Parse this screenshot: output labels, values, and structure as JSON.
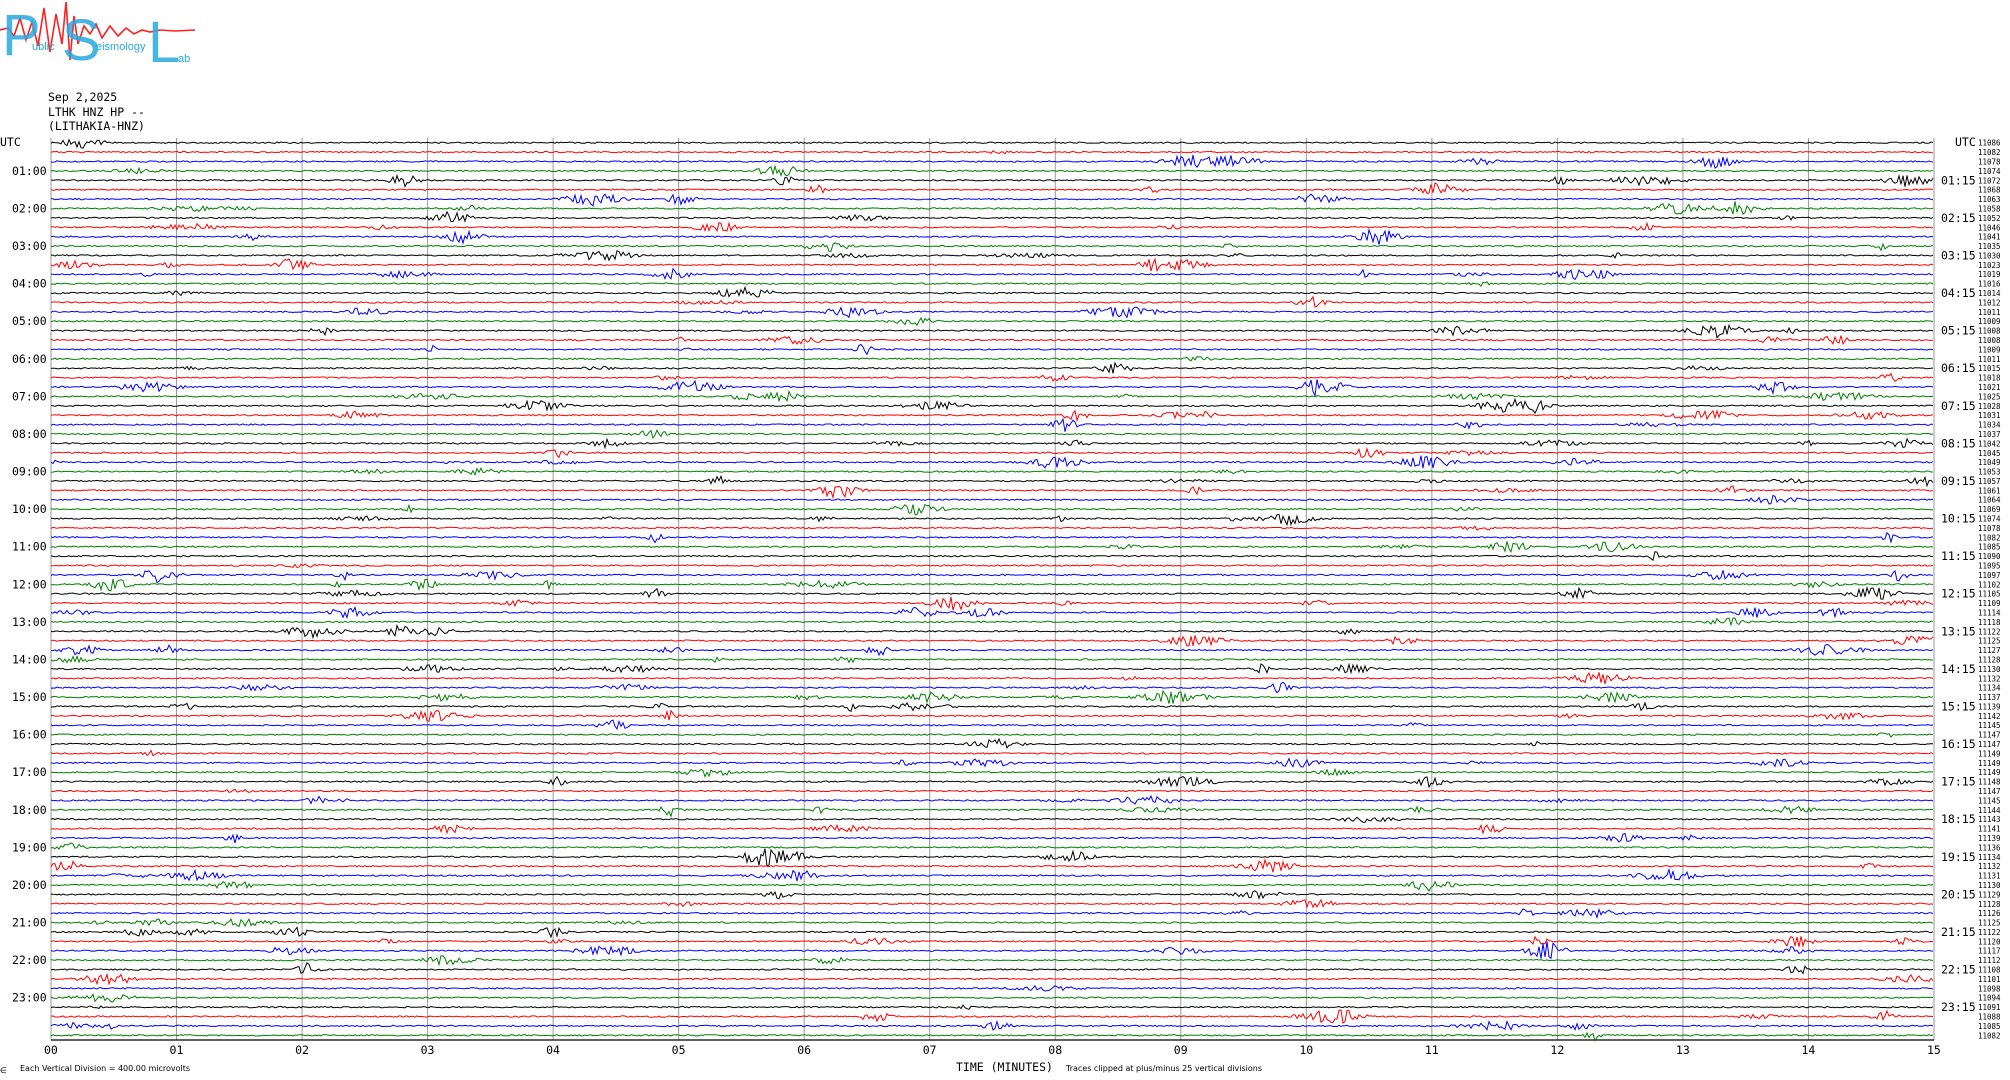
{
  "logo": {
    "letters": [
      "P",
      "S",
      "L"
    ],
    "words": [
      "ublic",
      "eismology",
      "ab"
    ],
    "color": "#2aa9e0",
    "wave_color": "#ff2020"
  },
  "header": {
    "date": "Sep 2,2025",
    "station": "LTHK HNZ HP --",
    "location": "(LITHAKIA-HNZ)"
  },
  "chart_data": {
    "type": "line",
    "title": "",
    "xlabel": "TIME (MINUTES)",
    "x_ticks": [
      "00",
      "01",
      "02",
      "03",
      "04",
      "05",
      "06",
      "07",
      "08",
      "09",
      "10",
      "11",
      "12",
      "13",
      "14",
      "15"
    ],
    "xlim": [
      0,
      15
    ],
    "left_axis_label": "UTC",
    "right_axis_label": "UTC",
    "left_hour_labels": [
      "01:00",
      "02:00",
      "03:00",
      "04:00",
      "05:00",
      "06:00",
      "07:00",
      "08:00",
      "09:00",
      "10:00",
      "11:00",
      "12:00",
      "13:00",
      "14:00",
      "15:00",
      "16:00",
      "17:00",
      "18:00",
      "19:00",
      "20:00",
      "21:00",
      "22:00",
      "23:00"
    ],
    "right_hour_labels": [
      "01:15",
      "02:15",
      "03:15",
      "04:15",
      "05:15",
      "06:15",
      "07:15",
      "08:15",
      "09:15",
      "10:15",
      "11:15",
      "12:15",
      "13:15",
      "14:15",
      "15:15",
      "16:15",
      "17:15",
      "18:15",
      "19:15",
      "20:15",
      "21:15",
      "22:15",
      "23:15"
    ],
    "trace_colors": [
      "#000000",
      "#ff0000",
      "#0000ff",
      "#008000"
    ],
    "trace_count": 96,
    "trace_minutes": 15,
    "right_trace_counts": [
      "11086",
      "11082",
      "11078",
      "11074",
      "11072",
      "11068",
      "11063",
      "11058",
      "11052",
      "11046",
      "11041",
      "11035",
      "11030",
      "11023",
      "11019",
      "11016",
      "11014",
      "11012",
      "11011",
      "11009",
      "11008",
      "11008",
      "11009",
      "11011",
      "11015",
      "11018",
      "11021",
      "11025",
      "11028",
      "11031",
      "11034",
      "11037",
      "11042",
      "11045",
      "11049",
      "11053",
      "11057",
      "11061",
      "11064",
      "11069",
      "11074",
      "11078",
      "11082",
      "11085",
      "11090",
      "11095",
      "11097",
      "11102",
      "11105",
      "11109",
      "11114",
      "11118",
      "11122",
      "11125",
      "11127",
      "11128",
      "11130",
      "11132",
      "11134",
      "11137",
      "11139",
      "11142",
      "11145",
      "11147",
      "11147",
      "11149",
      "11149",
      "11149",
      "11148",
      "11147",
      "11145",
      "11144",
      "11143",
      "11141",
      "11139",
      "11136",
      "11134",
      "11132",
      "11131",
      "11130",
      "11129",
      "11128",
      "11126",
      "11125",
      "11122",
      "11120",
      "11117",
      "11112",
      "11108",
      "11101",
      "11098",
      "11094",
      "11091",
      "11088",
      "11085",
      "11082"
    ],
    "footer_left": "Each Vertical Division =  400.00 microvolts",
    "footer_right": "Traces clipped at plus/minus 25 vertical divisions",
    "corner_mark": "∈"
  }
}
